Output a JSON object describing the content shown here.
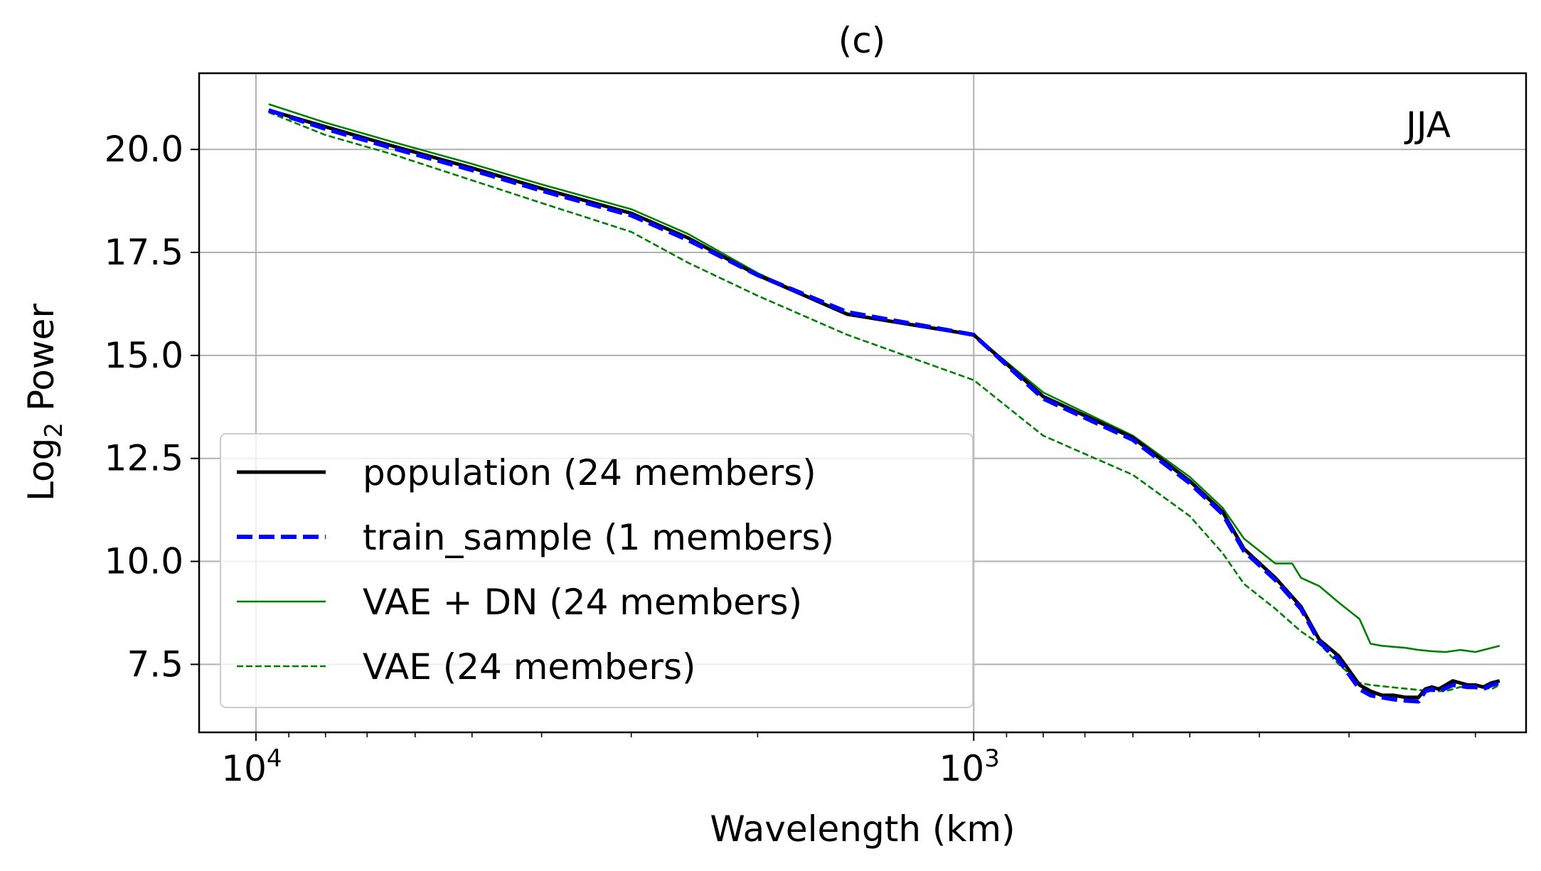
{
  "chart_data": {
    "type": "line",
    "title": "(c)",
    "annotation": "JJA",
    "xlabel": "Wavelength (km)",
    "ylabel": "Log",
    "ylabel_sub": "2",
    "ylabel_suffix": " Power",
    "xscale": "log",
    "xaxis_inverted": true,
    "xlim": [
      12000,
      170
    ],
    "ylim": [
      5.85,
      21.85
    ],
    "grid": true,
    "legend_position": "lower-left",
    "xticks": [
      {
        "value": 10000,
        "base": "10",
        "exp": "4"
      },
      {
        "value": 1000,
        "base": "10",
        "exp": "3"
      }
    ],
    "yticks": [
      {
        "value": 7.5,
        "label": "7.5"
      },
      {
        "value": 10.0,
        "label": "10.0"
      },
      {
        "value": 12.5,
        "label": "12.5"
      },
      {
        "value": 15.0,
        "label": "15.0"
      },
      {
        "value": 17.5,
        "label": "17.5"
      },
      {
        "value": 20.0,
        "label": "20.0"
      }
    ],
    "series": [
      {
        "name": "population (24 members)",
        "color": "#000000",
        "style": "solid-thick",
        "x": [
          9600,
          8000,
          6500,
          5000,
          4000,
          3000,
          2500,
          2000,
          1500,
          1000,
          800,
          600,
          500,
          450,
          420,
          380,
          350,
          330,
          310,
          290,
          280,
          270,
          260,
          250,
          240,
          235,
          230,
          225,
          215,
          205,
          200,
          195,
          190,
          185
        ],
        "y": [
          20.95,
          20.55,
          20.1,
          19.55,
          19.05,
          18.45,
          17.85,
          16.95,
          16.0,
          15.5,
          14.0,
          13.0,
          11.95,
          11.2,
          10.3,
          9.6,
          8.9,
          8.1,
          7.7,
          7.0,
          6.85,
          6.75,
          6.75,
          6.7,
          6.7,
          6.9,
          6.95,
          6.9,
          7.1,
          7.0,
          7.0,
          6.95,
          7.05,
          7.1
        ]
      },
      {
        "name": "train_sample (1 members)",
        "color": "#0000ff",
        "style": "dashed-thick",
        "x": [
          9600,
          8000,
          6500,
          5000,
          4000,
          3000,
          2500,
          2000,
          1500,
          1000,
          800,
          600,
          500,
          450,
          420,
          380,
          350,
          330,
          310,
          290,
          280,
          270,
          260,
          250,
          240,
          235,
          230,
          225,
          215,
          205,
          200,
          195,
          190,
          185
        ],
        "y": [
          20.95,
          20.5,
          20.05,
          19.5,
          19.0,
          18.4,
          17.8,
          16.95,
          16.05,
          15.5,
          13.95,
          12.95,
          11.9,
          11.15,
          10.25,
          9.55,
          8.85,
          8.05,
          7.6,
          6.9,
          6.75,
          6.7,
          6.65,
          6.62,
          6.6,
          6.85,
          6.9,
          6.85,
          7.0,
          6.95,
          6.95,
          6.9,
          7.0,
          7.05
        ]
      },
      {
        "name": "VAE + DN (24 members)",
        "color": "#008000",
        "style": "solid-thin",
        "x": [
          9600,
          8000,
          6500,
          5000,
          4000,
          3000,
          2500,
          2000,
          1500,
          1000,
          800,
          600,
          500,
          450,
          420,
          380,
          360,
          350,
          330,
          310,
          290,
          280,
          270,
          250,
          240,
          230,
          220,
          210,
          200,
          195,
          190,
          185
        ],
        "y": [
          21.1,
          20.65,
          20.2,
          19.65,
          19.15,
          18.55,
          17.95,
          17.0,
          16.0,
          15.5,
          14.1,
          13.05,
          12.05,
          11.3,
          10.55,
          9.95,
          9.95,
          9.6,
          9.4,
          9.0,
          8.6,
          8.0,
          7.95,
          7.9,
          7.85,
          7.82,
          7.8,
          7.85,
          7.8,
          7.85,
          7.9,
          7.95
        ]
      },
      {
        "name": "VAE (24 members)",
        "color": "#008000",
        "style": "dashed-thin",
        "x": [
          9600,
          8000,
          6500,
          5000,
          4000,
          3000,
          2500,
          2000,
          1500,
          1000,
          800,
          600,
          500,
          450,
          420,
          380,
          350,
          330,
          310,
          290,
          280,
          270,
          260,
          250,
          240,
          230,
          220,
          210,
          200,
          195,
          190,
          185
        ],
        "y": [
          20.9,
          20.35,
          19.9,
          19.25,
          18.7,
          18.0,
          17.25,
          16.45,
          15.5,
          14.4,
          13.05,
          12.1,
          11.1,
          10.2,
          9.45,
          8.85,
          8.3,
          8.0,
          7.5,
          7.05,
          7.0,
          6.97,
          6.94,
          6.91,
          6.88,
          6.85,
          6.85,
          6.95,
          7.0,
          6.95,
          6.9,
          7.0
        ]
      }
    ]
  }
}
